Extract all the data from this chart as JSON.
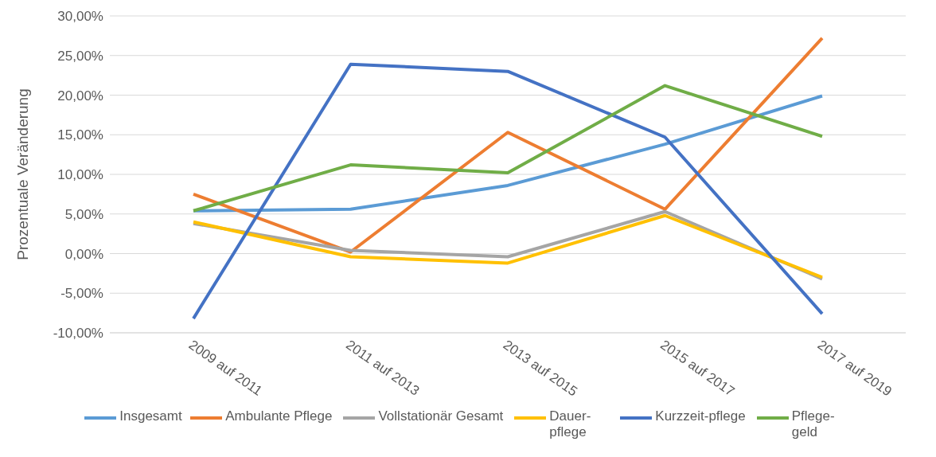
{
  "chart_data": {
    "type": "line",
    "ylabel": "Prozentuale Veränderung",
    "categories": [
      "2009 auf 2011",
      "2011 auf 2013",
      "2013 auf 2015",
      "2015 auf 2017",
      "2017 auf 2019"
    ],
    "series": [
      {
        "name": "Insgesamt",
        "color": "#5b9bd5",
        "values": [
          5.4,
          5.6,
          8.6,
          13.8,
          19.9
        ]
      },
      {
        "name": "Ambulante Pflege",
        "color": "#ed7d31",
        "values": [
          7.5,
          0.2,
          15.3,
          5.6,
          27.2
        ]
      },
      {
        "name": "Vollstationär Gesamt",
        "color": "#a5a5a5",
        "values": [
          3.8,
          0.4,
          -0.4,
          5.3,
          -3.2
        ]
      },
      {
        "name": "Dauer-pflege",
        "color": "#ffc000",
        "values": [
          4.0,
          -0.4,
          -1.2,
          4.8,
          -3.0
        ]
      },
      {
        "name": "Kurzzeit-pflege",
        "color": "#4472c4",
        "values": [
          -8.2,
          23.9,
          23.0,
          14.7,
          -7.6
        ]
      },
      {
        "name": "Pflege-geld",
        "color": "#70ad47",
        "values": [
          5.4,
          11.2,
          10.2,
          21.2,
          14.8
        ]
      }
    ],
    "ylim": [
      -10,
      30
    ],
    "yticks": [
      {
        "value": -10,
        "label": "-10,00%"
      },
      {
        "value": -5,
        "label": "-5,00%"
      },
      {
        "value": 0,
        "label": "0,00%"
      },
      {
        "value": 5,
        "label": "5,00%"
      },
      {
        "value": 10,
        "label": "10,00%"
      },
      {
        "value": 15,
        "label": "15,00%"
      },
      {
        "value": 20,
        "label": "20,00%"
      },
      {
        "value": 25,
        "label": "25,00%"
      },
      {
        "value": 30,
        "label": "30,00%"
      }
    ],
    "grid": "y",
    "legend": "bottom",
    "marker": "none",
    "line_style": "solid"
  }
}
